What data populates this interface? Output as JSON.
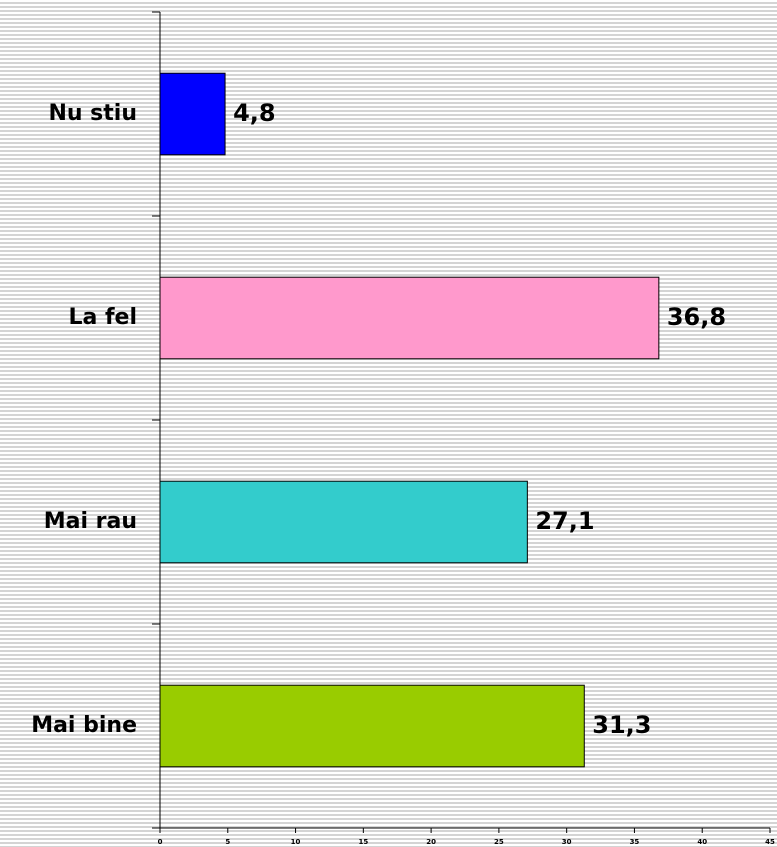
{
  "chart_data": {
    "type": "hbar",
    "categories": [
      "Nu stiu",
      "La fel",
      "Mai rau",
      "Mai bine"
    ],
    "values": [
      4.8,
      36.8,
      27.1,
      31.3
    ],
    "value_labels": [
      "4,8",
      "36,8",
      "27,1",
      "31,3"
    ],
    "colors": [
      "#0000ff",
      "#ff99cc",
      "#33cccc",
      "#99cc00"
    ],
    "xlim": [
      0,
      45
    ],
    "xticks": [
      0,
      5,
      10,
      15,
      20,
      25,
      30,
      35,
      40,
      45
    ]
  }
}
